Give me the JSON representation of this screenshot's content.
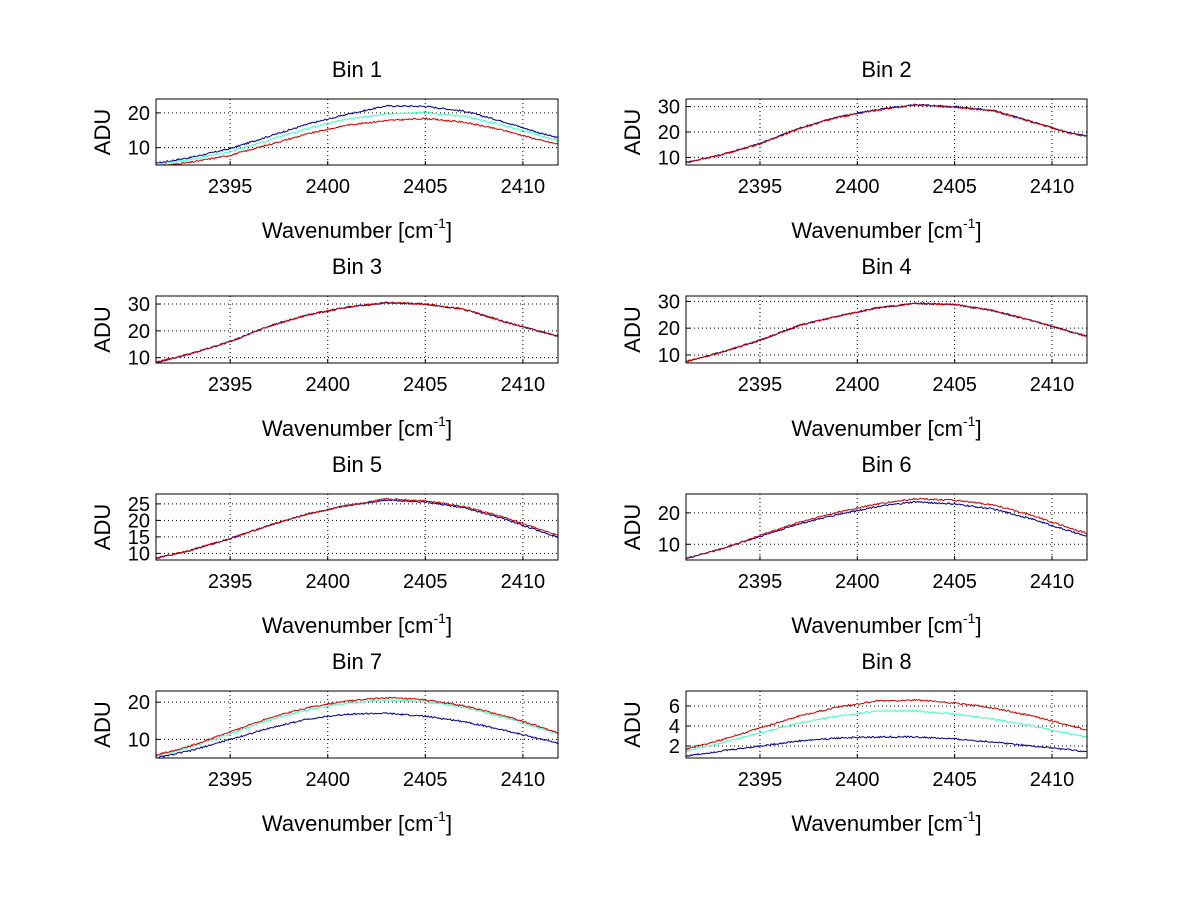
{
  "figure": {
    "background": "#ffffff"
  },
  "chart_data": [
    {
      "type": "line",
      "title": "Bin 1",
      "xlabel": "Wavenumber [cm",
      "xlabel_sup": "-1",
      "xlabel_tail": "]",
      "ylabel": "ADU",
      "xlim": [
        2391.2,
        2411.8
      ],
      "ylim": [
        5,
        24
      ],
      "grid": true,
      "xticks": [
        2395,
        2400,
        2405,
        2410
      ],
      "yticks": [
        10,
        20
      ],
      "x": [
        2391.2,
        2393,
        2395,
        2397,
        2399,
        2401,
        2403,
        2405,
        2407,
        2409,
        2411,
        2411.8
      ],
      "series": [
        {
          "color": "#00008f",
          "values": [
            5.5,
            7.2,
            9.7,
            13.3,
            16.8,
            19.6,
            22.0,
            21.9,
            20.5,
            17.5,
            14.0,
            12.8
          ]
        },
        {
          "color": "#40ffbf",
          "values": [
            5.2,
            6.6,
            8.8,
            12.2,
            15.6,
            18.2,
            19.7,
            20.1,
            19.0,
            16.5,
            13.3,
            12.0
          ]
        },
        {
          "color": "#d00000",
          "values": [
            4.6,
            5.8,
            7.8,
            10.9,
            14.0,
            16.5,
            17.8,
            18.4,
            17.3,
            15.0,
            12.0,
            11.0
          ]
        }
      ]
    },
    {
      "type": "line",
      "title": "Bin 2",
      "xlabel": "Wavenumber [cm",
      "xlabel_sup": "-1",
      "xlabel_tail": "]",
      "ylabel": "ADU",
      "xlim": [
        2391.2,
        2411.8
      ],
      "ylim": [
        7,
        33
      ],
      "grid": true,
      "xticks": [
        2395,
        2400,
        2405,
        2410
      ],
      "yticks": [
        10,
        20,
        30
      ],
      "x": [
        2391.2,
        2393,
        2395,
        2397,
        2399,
        2401,
        2403,
        2405,
        2407,
        2409,
        2411,
        2411.8
      ],
      "series": [
        {
          "color": "#00008f",
          "values": [
            8.0,
            11.0,
            15.5,
            21.5,
            26.0,
            28.8,
            30.8,
            30.0,
            28.5,
            24.0,
            19.5,
            18.5
          ]
        },
        {
          "color": "#d00000",
          "values": [
            8.0,
            11.0,
            15.3,
            21.3,
            25.8,
            28.6,
            30.6,
            29.8,
            28.3,
            23.8,
            19.3,
            18.3
          ]
        }
      ]
    },
    {
      "type": "line",
      "title": "Bin 3",
      "xlabel": "Wavenumber [cm",
      "xlabel_sup": "-1",
      "xlabel_tail": "]",
      "ylabel": "ADU",
      "xlim": [
        2391.2,
        2411.8
      ],
      "ylim": [
        8,
        33
      ],
      "grid": true,
      "xticks": [
        2395,
        2400,
        2405,
        2410
      ],
      "yticks": [
        10,
        20,
        30
      ],
      "x": [
        2391.2,
        2393,
        2395,
        2397,
        2399,
        2401,
        2403,
        2405,
        2407,
        2409,
        2411,
        2411.8
      ],
      "series": [
        {
          "color": "#00008f",
          "values": [
            8.2,
            11.5,
            16.0,
            21.8,
            26.0,
            28.8,
            30.5,
            30.0,
            28.0,
            23.5,
            19.5,
            18.0
          ]
        },
        {
          "color": "#d00000",
          "values": [
            8.2,
            11.5,
            16.0,
            21.8,
            26.0,
            28.8,
            30.5,
            30.0,
            28.0,
            23.5,
            19.5,
            18.0
          ]
        }
      ]
    },
    {
      "type": "line",
      "title": "Bin 4",
      "xlabel": "Wavenumber [cm",
      "xlabel_sup": "-1",
      "xlabel_tail": "]",
      "ylabel": "ADU",
      "xlim": [
        2391.2,
        2411.8
      ],
      "ylim": [
        7,
        32
      ],
      "grid": true,
      "xticks": [
        2395,
        2400,
        2405,
        2410
      ],
      "yticks": [
        10,
        20,
        30
      ],
      "x": [
        2391.2,
        2393,
        2395,
        2397,
        2399,
        2401,
        2403,
        2405,
        2407,
        2409,
        2411,
        2411.8
      ],
      "series": [
        {
          "color": "#00008f",
          "values": [
            7.5,
            11.0,
            15.5,
            21.0,
            24.5,
            27.5,
            29.3,
            28.8,
            26.5,
            22.8,
            18.5,
            17.0
          ]
        },
        {
          "color": "#d00000",
          "values": [
            7.5,
            11.0,
            15.5,
            21.0,
            24.5,
            27.5,
            29.3,
            28.8,
            26.5,
            22.8,
            18.5,
            17.0
          ]
        }
      ]
    },
    {
      "type": "line",
      "title": "Bin 5",
      "xlabel": "Wavenumber [cm",
      "xlabel_sup": "-1",
      "xlabel_tail": "]",
      "ylabel": "ADU",
      "xlim": [
        2391.2,
        2411.8
      ],
      "ylim": [
        8,
        28
      ],
      "grid": true,
      "xticks": [
        2395,
        2400,
        2405,
        2410
      ],
      "yticks": [
        10,
        15,
        20,
        25
      ],
      "x": [
        2391.2,
        2393,
        2395,
        2397,
        2399,
        2401,
        2403,
        2405,
        2407,
        2409,
        2411,
        2411.8
      ],
      "series": [
        {
          "color": "#00008f",
          "values": [
            8.5,
            11.0,
            14.5,
            18.5,
            22.0,
            24.5,
            26.2,
            25.6,
            23.8,
            20.5,
            16.5,
            15.0
          ]
        },
        {
          "color": "#d00000",
          "values": [
            8.5,
            11.0,
            14.5,
            18.5,
            22.0,
            24.5,
            26.5,
            26.0,
            24.2,
            21.0,
            17.0,
            15.5
          ]
        }
      ]
    },
    {
      "type": "line",
      "title": "Bin 6",
      "xlabel": "Wavenumber [cm",
      "xlabel_sup": "-1",
      "xlabel_tail": "]",
      "ylabel": "ADU",
      "xlim": [
        2391.2,
        2411.8
      ],
      "ylim": [
        5,
        26
      ],
      "grid": true,
      "xticks": [
        2395,
        2400,
        2405,
        2410
      ],
      "yticks": [
        10,
        20
      ],
      "x": [
        2391.2,
        2393,
        2395,
        2397,
        2399,
        2401,
        2403,
        2405,
        2407,
        2409,
        2411,
        2411.8
      ],
      "series": [
        {
          "color": "#00008f",
          "values": [
            5.5,
            8.5,
            12.5,
            16.5,
            19.5,
            22.0,
            23.5,
            22.8,
            21.2,
            18.0,
            14.0,
            12.5
          ]
        },
        {
          "color": "#d00000",
          "values": [
            5.5,
            8.5,
            12.8,
            17.0,
            20.2,
            22.8,
            24.5,
            24.0,
            22.5,
            19.2,
            15.0,
            13.5
          ]
        }
      ]
    },
    {
      "type": "line",
      "title": "Bin 7",
      "xlabel": "Wavenumber [cm",
      "xlabel_sup": "-1",
      "xlabel_tail": "]",
      "ylabel": "ADU",
      "xlim": [
        2391.2,
        2411.8
      ],
      "ylim": [
        5,
        23
      ],
      "grid": true,
      "xticks": [
        2395,
        2400,
        2405,
        2410
      ],
      "yticks": [
        10,
        20
      ],
      "x": [
        2391.2,
        2393,
        2395,
        2397,
        2399,
        2401,
        2403,
        2405,
        2407,
        2409,
        2411,
        2411.8
      ],
      "series": [
        {
          "color": "#00008f",
          "values": [
            5.0,
            7.0,
            10.0,
            13.0,
            15.5,
            16.8,
            17.0,
            16.2,
            14.8,
            12.5,
            10.0,
            9.0
          ]
        },
        {
          "color": "#40ffbf",
          "values": [
            5.5,
            8.0,
            11.5,
            15.2,
            18.0,
            19.8,
            20.6,
            20.2,
            18.6,
            16.0,
            12.8,
            11.5
          ]
        },
        {
          "color": "#d00000",
          "values": [
            5.8,
            8.3,
            12.0,
            15.8,
            18.6,
            20.3,
            21.2,
            20.6,
            19.0,
            16.4,
            13.2,
            11.8
          ]
        }
      ]
    },
    {
      "type": "line",
      "title": "Bin 8",
      "xlabel": "Wavenumber [cm",
      "xlabel_sup": "-1",
      "xlabel_tail": "]",
      "ylabel": "ADU",
      "xlim": [
        2391.2,
        2411.8
      ],
      "ylim": [
        0.8,
        7.5
      ],
      "grid": true,
      "xticks": [
        2395,
        2400,
        2405,
        2410
      ],
      "yticks": [
        2,
        4,
        6
      ],
      "x": [
        2391.2,
        2393,
        2395,
        2397,
        2399,
        2401,
        2403,
        2405,
        2407,
        2409,
        2411,
        2411.8
      ],
      "series": [
        {
          "color": "#00008f",
          "values": [
            1.0,
            1.5,
            2.0,
            2.5,
            2.8,
            2.9,
            2.9,
            2.7,
            2.4,
            2.0,
            1.6,
            1.4
          ]
        },
        {
          "color": "#40ffbf",
          "values": [
            1.5,
            2.3,
            3.3,
            4.3,
            5.0,
            5.5,
            5.5,
            5.2,
            4.7,
            4.0,
            3.2,
            2.9
          ]
        },
        {
          "color": "#d00000",
          "values": [
            1.7,
            2.6,
            3.8,
            5.0,
            5.9,
            6.5,
            6.6,
            6.3,
            5.8,
            5.0,
            4.0,
            3.6
          ]
        }
      ]
    }
  ]
}
